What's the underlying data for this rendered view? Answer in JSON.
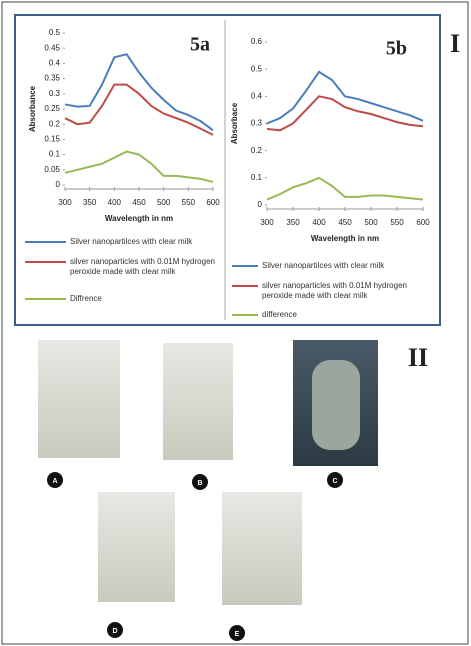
{
  "chart_data": [
    {
      "type": "line",
      "title": "5a",
      "xlabel": "Wavelength in nm",
      "ylabel": "Absorbance",
      "x": [
        300,
        325,
        350,
        375,
        400,
        425,
        450,
        475,
        500,
        525,
        550,
        575,
        600
      ],
      "xlim": [
        300,
        600
      ],
      "xticks": [
        300,
        350,
        400,
        450,
        500,
        550,
        600
      ],
      "ylim": [
        0,
        0.5
      ],
      "yticks": [
        0,
        0.05,
        0.1,
        0.15,
        0.2,
        0.25,
        0.3,
        0.35,
        0.4,
        0.45,
        0.5
      ],
      "series": [
        {
          "name": "Silver nanopartilces with clear milk",
          "color": "#4a7ebb",
          "values": [
            0.265,
            0.258,
            0.26,
            0.33,
            0.42,
            0.43,
            0.37,
            0.32,
            0.28,
            0.245,
            0.23,
            0.21,
            0.18
          ]
        },
        {
          "name": "silver nanoparticles with 0.01M hydrogen peroxide made with clear milk",
          "color": "#be4b48",
          "values": [
            0.22,
            0.2,
            0.205,
            0.26,
            0.33,
            0.33,
            0.3,
            0.26,
            0.235,
            0.22,
            0.205,
            0.185,
            0.165
          ]
        },
        {
          "name": "Diffrence",
          "color": "#98b954",
          "values": [
            0.04,
            0.05,
            0.06,
            0.07,
            0.09,
            0.11,
            0.1,
            0.07,
            0.03,
            0.03,
            0.025,
            0.02,
            0.01
          ]
        }
      ]
    },
    {
      "type": "line",
      "title": "5b",
      "xlabel": "Wavelength in nm",
      "ylabel": "Absorbace",
      "x": [
        300,
        325,
        350,
        375,
        400,
        425,
        450,
        475,
        500,
        525,
        550,
        575,
        600
      ],
      "xlim": [
        300,
        600
      ],
      "xticks": [
        300,
        350,
        400,
        450,
        500,
        550,
        600
      ],
      "ylim": [
        0,
        0.6
      ],
      "yticks": [
        0,
        0.1,
        0.2,
        0.3,
        0.4,
        0.5,
        0.6
      ],
      "series": [
        {
          "name": "Silver nanopartilces with clear milk",
          "color": "#4a7ebb",
          "values": [
            0.3,
            0.32,
            0.355,
            0.42,
            0.49,
            0.46,
            0.4,
            0.39,
            0.375,
            0.36,
            0.345,
            0.33,
            0.31
          ]
        },
        {
          "name": "silver nanoparticles with 0.01M hydrogen peroxide made with clear milk",
          "color": "#be4b48",
          "values": [
            0.28,
            0.275,
            0.3,
            0.35,
            0.4,
            0.39,
            0.36,
            0.345,
            0.335,
            0.32,
            0.305,
            0.295,
            0.29
          ]
        },
        {
          "name": "difference",
          "color": "#98b954",
          "values": [
            0.02,
            0.04,
            0.065,
            0.08,
            0.1,
            0.07,
            0.03,
            0.03,
            0.035,
            0.035,
            0.03,
            0.025,
            0.02
          ]
        }
      ]
    }
  ],
  "panel_labels": [
    "I",
    "II"
  ],
  "photo_labels": [
    "A",
    "B",
    "C",
    "D",
    "E"
  ]
}
